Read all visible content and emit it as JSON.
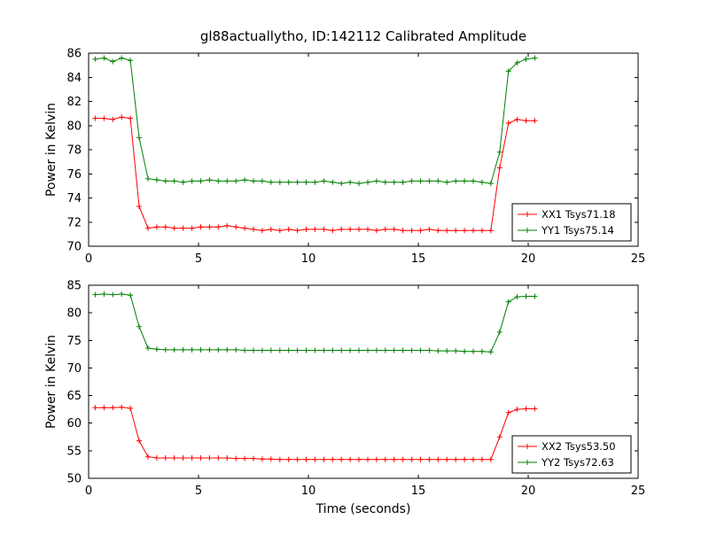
{
  "title": "gl88actuallytho, ID:142112 Calibrated Amplitude",
  "colors": {
    "red_series": "#ff0000",
    "green_series": "#008000",
    "axes": "#000000",
    "background": "#ffffff"
  },
  "chart_data": [
    {
      "type": "line",
      "subplot": "top",
      "xlabel": "",
      "ylabel": "Power in Kelvin",
      "xlim": [
        0,
        25
      ],
      "ylim": [
        70,
        86
      ],
      "xticks": [
        0,
        5,
        10,
        15,
        20,
        25
      ],
      "yticks": [
        70,
        72,
        74,
        76,
        78,
        80,
        82,
        84,
        86
      ],
      "grid": false,
      "legend_position": "lower right",
      "marker": "+",
      "x": [
        0.3,
        0.7,
        1.1,
        1.5,
        1.9,
        2.3,
        2.7,
        3.1,
        3.5,
        3.9,
        4.3,
        4.7,
        5.1,
        5.5,
        5.9,
        6.3,
        6.7,
        7.1,
        7.5,
        7.9,
        8.3,
        8.7,
        9.1,
        9.5,
        9.9,
        10.3,
        10.7,
        11.1,
        11.5,
        11.9,
        12.3,
        12.7,
        13.1,
        13.5,
        13.9,
        14.3,
        14.7,
        15.1,
        15.5,
        15.9,
        16.3,
        16.7,
        17.1,
        17.5,
        17.9,
        18.3,
        18.7,
        19.1,
        19.5,
        19.9,
        20.3
      ],
      "series": [
        {
          "name": "XX1 Tsys71.18",
          "color": "#ff0000",
          "values": [
            80.6,
            80.6,
            80.5,
            80.7,
            80.6,
            73.3,
            71.5,
            71.6,
            71.6,
            71.5,
            71.5,
            71.5,
            71.6,
            71.6,
            71.6,
            71.7,
            71.6,
            71.5,
            71.4,
            71.3,
            71.4,
            71.3,
            71.4,
            71.3,
            71.4,
            71.4,
            71.4,
            71.3,
            71.4,
            71.4,
            71.4,
            71.4,
            71.3,
            71.4,
            71.4,
            71.3,
            71.3,
            71.3,
            71.4,
            71.3,
            71.3,
            71.3,
            71.3,
            71.3,
            71.3,
            71.3,
            76.5,
            80.2,
            80.5,
            80.4,
            80.4
          ]
        },
        {
          "name": "YY1 Tsys75.14",
          "color": "#008000",
          "values": [
            85.5,
            85.6,
            85.3,
            85.6,
            85.4,
            79.0,
            75.6,
            75.5,
            75.4,
            75.4,
            75.3,
            75.4,
            75.4,
            75.5,
            75.4,
            75.4,
            75.4,
            75.5,
            75.4,
            75.4,
            75.3,
            75.3,
            75.3,
            75.3,
            75.3,
            75.3,
            75.4,
            75.3,
            75.2,
            75.3,
            75.2,
            75.3,
            75.4,
            75.3,
            75.3,
            75.3,
            75.4,
            75.4,
            75.4,
            75.4,
            75.3,
            75.4,
            75.4,
            75.4,
            75.3,
            75.2,
            77.8,
            84.5,
            85.2,
            85.5,
            85.6
          ]
        }
      ]
    },
    {
      "type": "line",
      "subplot": "bottom",
      "xlabel": "Time (seconds)",
      "ylabel": "Power in Kelvin",
      "xlim": [
        0,
        25
      ],
      "ylim": [
        50,
        85
      ],
      "xticks": [
        0,
        5,
        10,
        15,
        20,
        25
      ],
      "yticks": [
        50,
        55,
        60,
        65,
        70,
        75,
        80,
        85
      ],
      "grid": false,
      "legend_position": "lower right",
      "marker": "+",
      "x": [
        0.3,
        0.7,
        1.1,
        1.5,
        1.9,
        2.3,
        2.7,
        3.1,
        3.5,
        3.9,
        4.3,
        4.7,
        5.1,
        5.5,
        5.9,
        6.3,
        6.7,
        7.1,
        7.5,
        7.9,
        8.3,
        8.7,
        9.1,
        9.5,
        9.9,
        10.3,
        10.7,
        11.1,
        11.5,
        11.9,
        12.3,
        12.7,
        13.1,
        13.5,
        13.9,
        14.3,
        14.7,
        15.1,
        15.5,
        15.9,
        16.3,
        16.7,
        17.1,
        17.5,
        17.9,
        18.3,
        18.7,
        19.1,
        19.5,
        19.9,
        20.3
      ],
      "series": [
        {
          "name": "XX2 Tsys53.50",
          "color": "#ff0000",
          "values": [
            62.8,
            62.8,
            62.8,
            62.9,
            62.7,
            56.8,
            53.9,
            53.7,
            53.7,
            53.7,
            53.7,
            53.7,
            53.7,
            53.7,
            53.7,
            53.7,
            53.6,
            53.6,
            53.6,
            53.5,
            53.5,
            53.4,
            53.4,
            53.4,
            53.4,
            53.4,
            53.4,
            53.4,
            53.4,
            53.4,
            53.4,
            53.4,
            53.4,
            53.4,
            53.4,
            53.4,
            53.4,
            53.4,
            53.4,
            53.4,
            53.4,
            53.4,
            53.4,
            53.4,
            53.4,
            53.4,
            57.5,
            61.9,
            62.5,
            62.6,
            62.6
          ]
        },
        {
          "name": "YY2 Tsys72.63",
          "color": "#008000",
          "values": [
            83.3,
            83.4,
            83.3,
            83.4,
            83.2,
            77.5,
            73.6,
            73.4,
            73.3,
            73.3,
            73.3,
            73.3,
            73.3,
            73.3,
            73.3,
            73.3,
            73.3,
            73.2,
            73.2,
            73.2,
            73.2,
            73.2,
            73.2,
            73.2,
            73.2,
            73.2,
            73.2,
            73.2,
            73.2,
            73.2,
            73.2,
            73.2,
            73.2,
            73.2,
            73.2,
            73.2,
            73.2,
            73.2,
            73.2,
            73.1,
            73.1,
            73.1,
            73.0,
            73.0,
            73.0,
            72.9,
            76.5,
            82.0,
            82.9,
            83.0,
            83.0
          ]
        }
      ]
    }
  ]
}
